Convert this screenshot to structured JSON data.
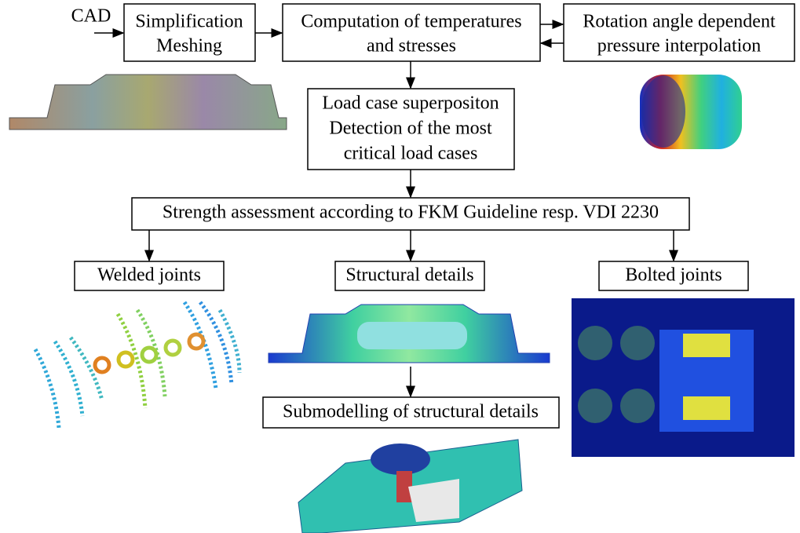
{
  "input": "CAD",
  "nodes": [
    {
      "lines": [
        "Simplification",
        "Meshing"
      ]
    },
    {
      "lines": [
        "Computation of temperatures",
        "and stresses"
      ]
    },
    {
      "lines": [
        "Rotation angle dependent",
        "pressure interpolation"
      ]
    },
    {
      "lines": [
        "Load case superpositon",
        "Detection of the most",
        "critical load cases"
      ]
    },
    {
      "lines": [
        "Strength assessment according to FKM Guideline resp. VDI 2230"
      ]
    },
    {
      "lines": [
        "Welded joints"
      ]
    },
    {
      "lines": [
        "Structural details"
      ]
    },
    {
      "lines": [
        "Bolted joints"
      ]
    },
    {
      "lines": [
        "Submodelling of structural details"
      ]
    }
  ]
}
